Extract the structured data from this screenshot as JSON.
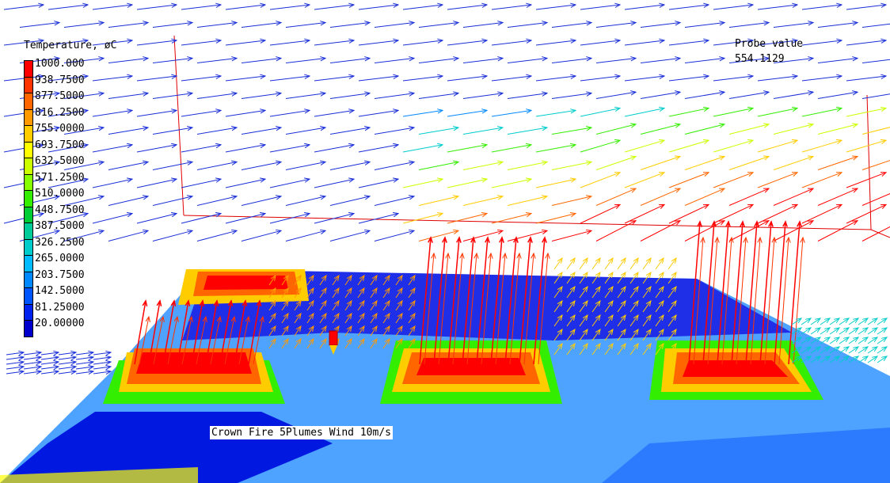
{
  "legend": {
    "title": "Temperature, øC",
    "levels": [
      {
        "label": "1000.000",
        "color": "#ff0000"
      },
      {
        "label": "938.7500",
        "color": "#ff3300"
      },
      {
        "label": "877.5000",
        "color": "#ff6600"
      },
      {
        "label": "816.2500",
        "color": "#ff9900"
      },
      {
        "label": "755.0000",
        "color": "#ffcc00"
      },
      {
        "label": "693.7500",
        "color": "#ffff00"
      },
      {
        "label": "632.5000",
        "color": "#ccff00"
      },
      {
        "label": "571.2500",
        "color": "#88ff00"
      },
      {
        "label": "510.0000",
        "color": "#33ee00"
      },
      {
        "label": "448.7500",
        "color": "#00cc33"
      },
      {
        "label": "387.5000",
        "color": "#00cc99"
      },
      {
        "label": "326.2500",
        "color": "#00cccc"
      },
      {
        "label": "265.0000",
        "color": "#00bbff"
      },
      {
        "label": "203.7500",
        "color": "#0088ff"
      },
      {
        "label": "142.5000",
        "color": "#0055ff"
      },
      {
        "label": "81.25000",
        "color": "#0022ee"
      },
      {
        "label": "20.00000",
        "color": "#0000cc"
      }
    ]
  },
  "probe": {
    "label": "Probe value",
    "value": "554.1129"
  },
  "case_title": "Crown Fire 5Plumes Wind 10m/s",
  "colors": {
    "cold": "#0018e0",
    "wind_vectors": "#1a2fd8",
    "hot": "#ff0000",
    "domain_outline": "#e00000"
  }
}
